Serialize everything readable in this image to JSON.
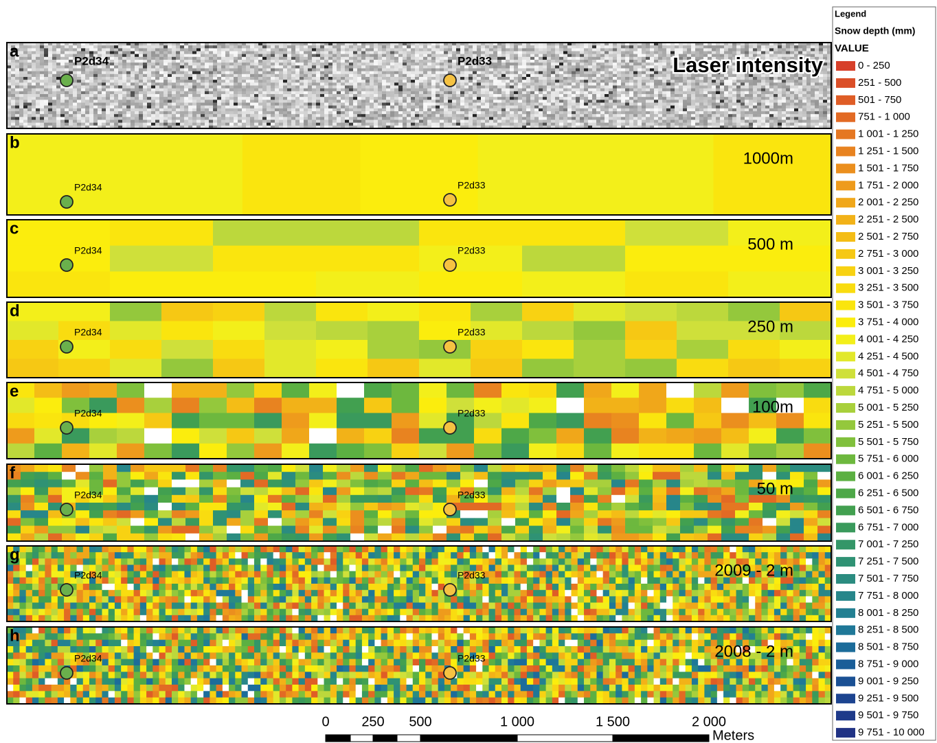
{
  "panels": [
    {
      "letter": "a",
      "label": "Laser intensity",
      "points": [
        {
          "name": "P2d34",
          "color": "#6ab04c"
        },
        {
          "name": "P2d33",
          "color": "#f5c242"
        }
      ]
    },
    {
      "letter": "b",
      "label": "1000m",
      "points": [
        {
          "name": "P2d34",
          "color": "#6ab04c"
        },
        {
          "name": "P2d33",
          "color": "#f5c242"
        }
      ]
    },
    {
      "letter": "c",
      "label": "500 m",
      "points": [
        {
          "name": "P2d34",
          "color": "#6ab04c"
        },
        {
          "name": "P2d33",
          "color": "#f5c242"
        }
      ]
    },
    {
      "letter": "d",
      "label": "250 m",
      "points": [
        {
          "name": "P2d34",
          "color": "#6ab04c"
        },
        {
          "name": "P2d33",
          "color": "#f5c242"
        }
      ]
    },
    {
      "letter": "e",
      "label": "100m",
      "points": [
        {
          "name": "P2d34",
          "color": "#6ab04c"
        },
        {
          "name": "P2d33",
          "color": "#f5c242"
        }
      ]
    },
    {
      "letter": "f",
      "label": "50 m",
      "points": [
        {
          "name": "P2d34",
          "color": "#6ab04c"
        },
        {
          "name": "P2d33",
          "color": "#f5c242"
        }
      ]
    },
    {
      "letter": "g",
      "label": "2009 - 2 m",
      "points": [
        {
          "name": "P2d34",
          "color": "#6ab04c"
        },
        {
          "name": "P2d33",
          "color": "#f5c242"
        }
      ]
    },
    {
      "letter": "h",
      "label": "2008 - 2 m",
      "points": [
        {
          "name": "P2d34",
          "color": "#6ab04c"
        },
        {
          "name": "P2d33",
          "color": "#f5c242"
        }
      ]
    }
  ],
  "legend": {
    "title": "Legend",
    "subtitle": "Snow depth (mm)",
    "field": "VALUE",
    "items": [
      {
        "label": "0 - 250",
        "color": "#d7402a"
      },
      {
        "label": "251 - 500",
        "color": "#db4f28"
      },
      {
        "label": "501 - 750",
        "color": "#df5d26"
      },
      {
        "label": "751 - 1 000",
        "color": "#e26a24"
      },
      {
        "label": "1 001 - 1 250",
        "color": "#e57722"
      },
      {
        "label": "1 251 - 1 500",
        "color": "#e88320"
      },
      {
        "label": "1 501 - 1 750",
        "color": "#eb8f1e"
      },
      {
        "label": "1 751 - 2 000",
        "color": "#ee9b1c"
      },
      {
        "label": "2 001 - 2 250",
        "color": "#f0a71a"
      },
      {
        "label": "2 251 - 2 500",
        "color": "#f2b218"
      },
      {
        "label": "2 501 - 2 750",
        "color": "#f4bd16"
      },
      {
        "label": "2 751 - 3 000",
        "color": "#f6c814"
      },
      {
        "label": "3 001 - 3 250",
        "color": "#f8d212"
      },
      {
        "label": "3 251 - 3 500",
        "color": "#f9dc10"
      },
      {
        "label": "3 501 - 3 750",
        "color": "#fae50e"
      },
      {
        "label": "3 751 - 4 000",
        "color": "#fbed0d"
      },
      {
        "label": "4 001 - 4 250",
        "color": "#f3ef1a"
      },
      {
        "label": "4 251 - 4 500",
        "color": "#e2e82a"
      },
      {
        "label": "4 501 - 4 750",
        "color": "#cfe03a"
      },
      {
        "label": "4 751 - 5 000",
        "color": "#bcd83c"
      },
      {
        "label": "5 001 - 5 250",
        "color": "#a8d03c"
      },
      {
        "label": "5 251 - 5 500",
        "color": "#94c83c"
      },
      {
        "label": "5 501 - 5 750",
        "color": "#80c03c"
      },
      {
        "label": "5 751 - 6 000",
        "color": "#6db83e"
      },
      {
        "label": "6 001 - 6 250",
        "color": "#5cb042"
      },
      {
        "label": "6 251 - 6 500",
        "color": "#4ea848"
      },
      {
        "label": "6 501 - 6 750",
        "color": "#42a050"
      },
      {
        "label": "6 751 - 7 000",
        "color": "#3a9a5c"
      },
      {
        "label": "7 001 - 7 250",
        "color": "#349668"
      },
      {
        "label": "7 251 - 7 500",
        "color": "#2f9274"
      },
      {
        "label": "7 501 - 7 750",
        "color": "#2b8c80"
      },
      {
        "label": "7 751 - 8 000",
        "color": "#27868a"
      },
      {
        "label": "8 001 - 8 250",
        "color": "#238092"
      },
      {
        "label": "8 251 - 8 500",
        "color": "#1f7898"
      },
      {
        "label": "8 501 - 8 750",
        "color": "#1c6c9a"
      },
      {
        "label": "8 751 - 9 000",
        "color": "#1a5e98"
      },
      {
        "label": "9 001 - 9 250",
        "color": "#1a5094"
      },
      {
        "label": "9 251 - 9 500",
        "color": "#1c4490"
      },
      {
        "label": "9 501 - 9 750",
        "color": "#1e3a8a"
      },
      {
        "label": "9 751 - 10 000",
        "color": "#203284"
      }
    ]
  },
  "scale_bar": {
    "labels": [
      "0",
      "250",
      "500",
      "1 000",
      "1 500",
      "2 000"
    ],
    "unit": "Meters"
  }
}
